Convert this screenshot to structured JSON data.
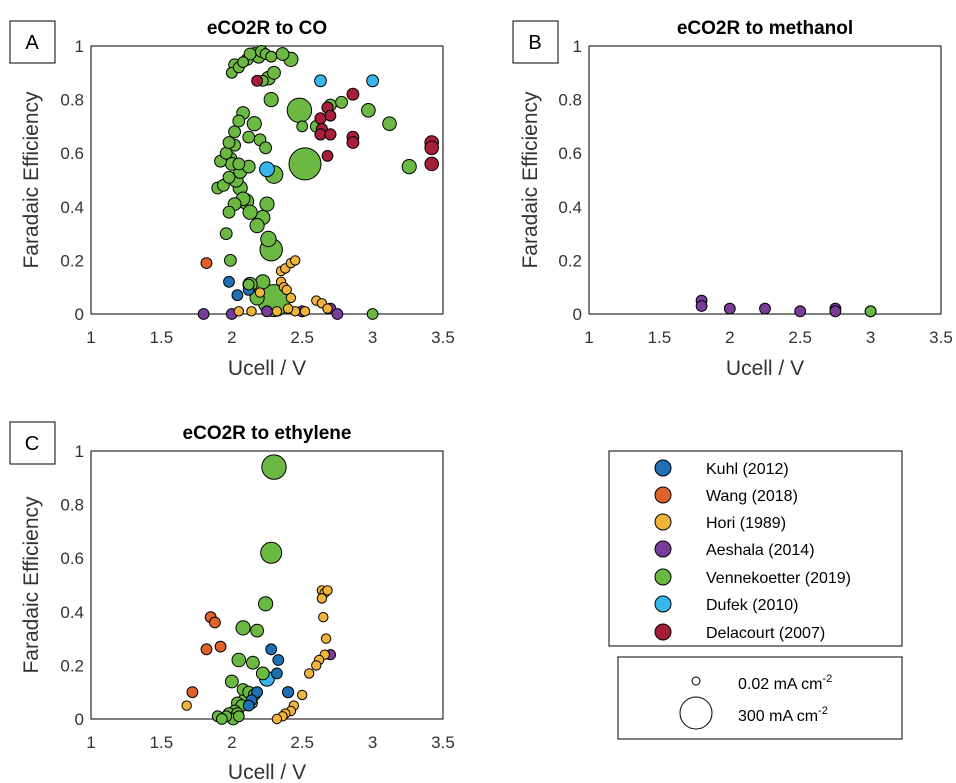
{
  "panels": [
    {
      "letter": "A",
      "title": "eCO2R to CO",
      "xlabel": "Ucell / V",
      "ylabel": "Faradaic Efficiency",
      "xlim": [
        1,
        3.5
      ],
      "ylim": [
        0,
        1
      ]
    },
    {
      "letter": "B",
      "title": "eCO2R to methanol",
      "xlabel": "Ucell / V",
      "ylabel": "Faradaic Efficiency",
      "xlim": [
        1,
        3.5
      ],
      "ylim": [
        0,
        1
      ]
    },
    {
      "letter": "C",
      "title": "eCO2R to ethylene",
      "xlabel": "Ucell / V",
      "ylabel": "Faradaic Efficiency",
      "xlim": [
        1,
        3.5
      ],
      "ylim": [
        0,
        1
      ]
    }
  ],
  "x_ticks": [
    "1",
    "1.5",
    "2",
    "2.5",
    "3",
    "3.5"
  ],
  "y_ticks": [
    "0",
    "0.2",
    "0.4",
    "0.6",
    "0.8",
    "1"
  ],
  "legend": {
    "series": [
      {
        "name": "Kuhl (2012)",
        "color": "#1f6fb5"
      },
      {
        "name": "Wang (2018)",
        "color": "#e0622a"
      },
      {
        "name": "Hori (1989)",
        "color": "#f0b43c"
      },
      {
        "name": "Aeshala (2014)",
        "color": "#7a3c9b"
      },
      {
        "name": "Vennekoetter (2019)",
        "color": "#6bb843"
      },
      {
        "name": "Dufek (2010)",
        "color": "#37b6ea"
      },
      {
        "name": "Delacourt (2007)",
        "color": "#a61e37"
      }
    ],
    "size_small": {
      "value": "0.02 mA cm",
      "sup": "-2"
    },
    "size_large": {
      "value": "300 mA cm",
      "sup": "-2"
    }
  },
  "chart_data": [
    {
      "type": "scatter",
      "title": "eCO2R to CO",
      "xlabel": "Ucell / V",
      "ylabel": "Faradaic Efficiency",
      "xlim": [
        1,
        3.5
      ],
      "ylim": [
        0,
        1
      ],
      "size_unit": "mA cm-2",
      "series": [
        {
          "name": "Kuhl (2012)",
          "points": [
            [
              1.98,
              0.12,
              10
            ],
            [
              2.04,
              0.07,
              10
            ],
            [
              2.12,
              0.09,
              10
            ]
          ]
        },
        {
          "name": "Wang (2018)",
          "points": [
            [
              1.82,
              0.19,
              10
            ]
          ]
        },
        {
          "name": "Hori (1989)",
          "points": [
            [
              2.35,
              0.16,
              5
            ],
            [
              2.38,
              0.17,
              5
            ],
            [
              2.42,
              0.19,
              5
            ],
            [
              2.45,
              0.2,
              5
            ],
            [
              2.35,
              0.12,
              5
            ],
            [
              2.37,
              0.1,
              5
            ],
            [
              2.39,
              0.09,
              5
            ],
            [
              2.2,
              0.08,
              5
            ],
            [
              2.42,
              0.06,
              5
            ],
            [
              2.6,
              0.05,
              5
            ],
            [
              2.64,
              0.04,
              5
            ],
            [
              2.68,
              0.02,
              5
            ],
            [
              2.32,
              0.01,
              5
            ],
            [
              2.45,
              0.01,
              5
            ],
            [
              2.52,
              0.01,
              5
            ],
            [
              2.4,
              0.02,
              5
            ],
            [
              2.05,
              0.01,
              5
            ],
            [
              2.14,
              0.01,
              5
            ]
          ]
        },
        {
          "name": "Aeshala (2014)",
          "points": [
            [
              1.8,
              0.0,
              10
            ],
            [
              2.0,
              0.0,
              10
            ],
            [
              2.25,
              0.01,
              10
            ],
            [
              2.5,
              0.01,
              10
            ],
            [
              2.7,
              0.02,
              10
            ],
            [
              2.75,
              0.0,
              10
            ]
          ]
        },
        {
          "name": "Vennekoetter (2019)",
          "points": [
            [
              2.3,
              0.05,
              300
            ],
            [
              2.52,
              0.56,
              300
            ],
            [
              2.48,
              0.76,
              150
            ],
            [
              2.28,
              0.24,
              120
            ],
            [
              2.26,
              0.28,
              40
            ],
            [
              2.3,
              0.52,
              60
            ],
            [
              2.22,
              0.12,
              30
            ],
            [
              2.18,
              0.06,
              30
            ],
            [
              2.13,
              0.11,
              30
            ],
            [
              2.25,
              0.41,
              30
            ],
            [
              2.22,
              0.36,
              30
            ],
            [
              2.18,
              0.33,
              30
            ],
            [
              2.1,
              0.42,
              40
            ],
            [
              2.13,
              0.38,
              30
            ],
            [
              2.06,
              0.47,
              30
            ],
            [
              2.03,
              0.5,
              30
            ],
            [
              2.06,
              0.53,
              20
            ],
            [
              2.12,
              0.55,
              20
            ],
            [
              2.08,
              0.43,
              25
            ],
            [
              2.02,
              0.41,
              20
            ],
            [
              1.98,
              0.38,
              15
            ],
            [
              1.96,
              0.3,
              15
            ],
            [
              1.9,
              0.47,
              15
            ],
            [
              1.94,
              0.48,
              15
            ],
            [
              1.98,
              0.51,
              15
            ],
            [
              1.92,
              0.57,
              15
            ],
            [
              1.99,
              0.58,
              20
            ],
            [
              2.05,
              0.56,
              15
            ],
            [
              2.02,
              0.63,
              15
            ],
            [
              1.96,
              0.6,
              15
            ],
            [
              1.98,
              0.64,
              15
            ],
            [
              2.02,
              0.68,
              15
            ],
            [
              2.05,
              0.72,
              15
            ],
            [
              2.08,
              0.75,
              20
            ],
            [
              2.12,
              0.66,
              15
            ],
            [
              2.16,
              0.71,
              30
            ],
            [
              2.2,
              0.65,
              15
            ],
            [
              2.24,
              0.62,
              15
            ],
            [
              2.28,
              0.8,
              30
            ],
            [
              2.26,
              0.88,
              25
            ],
            [
              2.3,
              0.9,
              20
            ],
            [
              2.22,
              0.87,
              10
            ],
            [
              2.0,
              0.9,
              10
            ],
            [
              2.02,
              0.93,
              15
            ],
            [
              2.05,
              0.92,
              10
            ],
            [
              2.08,
              0.94,
              10
            ],
            [
              2.11,
              0.95,
              15
            ],
            [
              2.13,
              0.97,
              15
            ],
            [
              2.16,
              0.97,
              20
            ],
            [
              2.19,
              0.96,
              20
            ],
            [
              2.21,
              0.98,
              15
            ],
            [
              2.24,
              0.97,
              10
            ],
            [
              2.28,
              0.96,
              10
            ],
            [
              2.36,
              0.97,
              20
            ],
            [
              2.42,
              0.95,
              30
            ],
            [
              2.0,
              0.56,
              20
            ],
            [
              2.5,
              0.7,
              10
            ],
            [
              2.6,
              0.7,
              15
            ],
            [
              2.7,
              0.78,
              15
            ],
            [
              2.78,
              0.79,
              15
            ],
            [
              2.97,
              0.76,
              25
            ],
            [
              3.12,
              0.71,
              25
            ],
            [
              3.26,
              0.55,
              30
            ],
            [
              1.99,
              0.2,
              15
            ],
            [
              2.12,
              0.11,
              10
            ],
            [
              3.0,
              0.0,
              10
            ]
          ]
        },
        {
          "name": "Dufek (2010)",
          "points": [
            [
              2.63,
              0.87,
              15
            ],
            [
              3.0,
              0.87,
              15
            ],
            [
              2.25,
              0.54,
              35
            ]
          ]
        },
        {
          "name": "Delacourt (2007)",
          "points": [
            [
              2.63,
              0.73,
              12
            ],
            [
              2.64,
              0.69,
              12
            ],
            [
              2.63,
              0.67,
              12
            ],
            [
              2.68,
              0.77,
              12
            ],
            [
              2.7,
              0.74,
              10
            ],
            [
              2.7,
              0.67,
              12
            ],
            [
              2.68,
              0.59,
              10
            ],
            [
              2.86,
              0.82,
              15
            ],
            [
              2.86,
              0.66,
              15
            ],
            [
              2.86,
              0.64,
              15
            ],
            [
              3.42,
              0.64,
              25
            ],
            [
              3.42,
              0.62,
              25
            ],
            [
              3.42,
              0.56,
              25
            ],
            [
              2.18,
              0.87,
              10
            ]
          ]
        }
      ]
    },
    {
      "type": "scatter",
      "title": "eCO2R to methanol",
      "xlabel": "Ucell / V",
      "ylabel": "Faradaic Efficiency",
      "xlim": [
        1,
        3.5
      ],
      "ylim": [
        0,
        1
      ],
      "size_unit": "mA cm-2",
      "series": [
        {
          "name": "Aeshala (2014)",
          "points": [
            [
              1.8,
              0.05,
              10
            ],
            [
              1.8,
              0.03,
              10
            ],
            [
              2.0,
              0.02,
              10
            ],
            [
              2.25,
              0.02,
              10
            ],
            [
              2.5,
              0.01,
              10
            ],
            [
              2.75,
              0.02,
              10
            ],
            [
              2.75,
              0.01,
              10
            ],
            [
              3.0,
              0.01,
              10
            ]
          ]
        },
        {
          "name": "Vennekoetter (2019)",
          "points": [
            [
              3.0,
              0.01,
              10
            ]
          ]
        }
      ]
    },
    {
      "type": "scatter",
      "title": "eCO2R to ethylene",
      "xlabel": "Ucell / V",
      "ylabel": "Faradaic Efficiency",
      "xlim": [
        1,
        3.5
      ],
      "ylim": [
        0,
        1
      ],
      "size_unit": "mA cm-2",
      "series": [
        {
          "name": "Kuhl (2012)",
          "points": [
            [
              2.28,
              0.26,
              10
            ],
            [
              2.33,
              0.22,
              10
            ],
            [
              2.32,
              0.17,
              10
            ],
            [
              2.4,
              0.1,
              12
            ],
            [
              2.18,
              0.1,
              10
            ],
            [
              2.14,
              0.07,
              10
            ],
            [
              2.12,
              0.05,
              10
            ]
          ]
        },
        {
          "name": "Wang (2018)",
          "points": [
            [
              1.85,
              0.38,
              10
            ],
            [
              1.88,
              0.36,
              10
            ],
            [
              1.82,
              0.26,
              10
            ],
            [
              1.92,
              0.27,
              10
            ],
            [
              1.72,
              0.1,
              10
            ]
          ]
        },
        {
          "name": "Hori (1989)",
          "points": [
            [
              2.64,
              0.48,
              5
            ],
            [
              2.66,
              0.47,
              5
            ],
            [
              2.68,
              0.48,
              5
            ],
            [
              2.64,
              0.45,
              5
            ],
            [
              2.65,
              0.38,
              5
            ],
            [
              2.67,
              0.3,
              5
            ],
            [
              2.66,
              0.24,
              5
            ],
            [
              2.62,
              0.22,
              5
            ],
            [
              2.6,
              0.2,
              5
            ],
            [
              2.55,
              0.17,
              5
            ],
            [
              2.5,
              0.09,
              5
            ],
            [
              2.44,
              0.05,
              5
            ],
            [
              2.42,
              0.03,
              5
            ],
            [
              2.38,
              0.02,
              5
            ],
            [
              2.36,
              0.01,
              5
            ],
            [
              2.32,
              0.0,
              5
            ],
            [
              1.68,
              0.05,
              5
            ]
          ]
        },
        {
          "name": "Aeshala (2014)",
          "points": [
            [
              2.7,
              0.24,
              8
            ]
          ]
        },
        {
          "name": "Vennekoetter (2019)",
          "points": [
            [
              2.3,
              0.94,
              150
            ],
            [
              2.28,
              0.62,
              100
            ],
            [
              2.24,
              0.43,
              30
            ],
            [
              2.08,
              0.34,
              30
            ],
            [
              2.18,
              0.33,
              20
            ],
            [
              2.05,
              0.22,
              25
            ],
            [
              2.15,
              0.21,
              20
            ],
            [
              2.22,
              0.17,
              20
            ],
            [
              2.0,
              0.14,
              20
            ],
            [
              2.08,
              0.11,
              15
            ],
            [
              2.12,
              0.1,
              15
            ],
            [
              2.16,
              0.09,
              15
            ],
            [
              2.1,
              0.08,
              20
            ],
            [
              2.14,
              0.06,
              15
            ],
            [
              2.04,
              0.06,
              15
            ],
            [
              2.07,
              0.05,
              15
            ],
            [
              2.02,
              0.03,
              15
            ],
            [
              1.98,
              0.02,
              15
            ],
            [
              2.04,
              0.02,
              15
            ],
            [
              1.96,
              0.01,
              10
            ],
            [
              1.9,
              0.01,
              10
            ],
            [
              1.93,
              0.0,
              10
            ],
            [
              2.01,
              0.0,
              15
            ],
            [
              2.05,
              0.01,
              10
            ]
          ]
        },
        {
          "name": "Dufek (2010)",
          "points": [
            [
              2.25,
              0.15,
              35
            ]
          ]
        }
      ]
    }
  ]
}
